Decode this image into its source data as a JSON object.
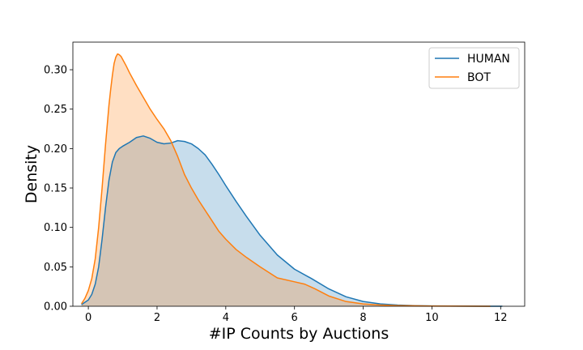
{
  "chart_data": {
    "type": "area",
    "xlabel": "#IP Counts by Auctions",
    "ylabel": "Density",
    "xlim": [
      -0.45,
      12.7
    ],
    "ylim": [
      0,
      0.335
    ],
    "xticks": [
      0,
      2,
      4,
      6,
      8,
      10,
      12
    ],
    "yticks": [
      0.0,
      0.05,
      0.1,
      0.15,
      0.2,
      0.25,
      0.3
    ],
    "ytick_labels": [
      "0.00",
      "0.05",
      "0.10",
      "0.15",
      "0.20",
      "0.25",
      "0.30"
    ],
    "grid": false,
    "legend_position": "top-right",
    "series": [
      {
        "name": "HUMAN",
        "color": "#1f77b4",
        "fill_opacity": 0.25,
        "x": [
          -0.2,
          0.0,
          0.1,
          0.2,
          0.3,
          0.4,
          0.5,
          0.6,
          0.7,
          0.8,
          0.9,
          1.0,
          1.2,
          1.4,
          1.6,
          1.8,
          2.0,
          2.2,
          2.4,
          2.6,
          2.8,
          3.0,
          3.2,
          3.4,
          3.6,
          3.8,
          4.0,
          4.3,
          4.6,
          5.0,
          5.5,
          6.0,
          6.5,
          7.0,
          7.5,
          8.0,
          8.5,
          9.0,
          9.5,
          10.0,
          10.5,
          11.0,
          11.5,
          12.05
        ],
        "y": [
          0.002,
          0.008,
          0.015,
          0.028,
          0.05,
          0.085,
          0.125,
          0.16,
          0.183,
          0.195,
          0.2,
          0.203,
          0.208,
          0.214,
          0.216,
          0.213,
          0.208,
          0.206,
          0.207,
          0.21,
          0.209,
          0.206,
          0.2,
          0.192,
          0.18,
          0.167,
          0.153,
          0.133,
          0.114,
          0.09,
          0.065,
          0.047,
          0.035,
          0.022,
          0.012,
          0.006,
          0.003,
          0.0015,
          0.0008,
          0.0004,
          0.0002,
          0.0001,
          0.0,
          0.0
        ]
      },
      {
        "name": "BOT",
        "color": "#ff7f0e",
        "fill_opacity": 0.25,
        "x": [
          -0.2,
          -0.1,
          0.0,
          0.1,
          0.2,
          0.3,
          0.4,
          0.5,
          0.6,
          0.65,
          0.7,
          0.75,
          0.8,
          0.85,
          0.9,
          0.95,
          1.0,
          1.1,
          1.2,
          1.4,
          1.6,
          1.8,
          2.0,
          2.2,
          2.4,
          2.6,
          2.8,
          3.0,
          3.2,
          3.5,
          3.8,
          4.0,
          4.3,
          4.6,
          5.0,
          5.5,
          6.0,
          6.3,
          6.6,
          7.0,
          7.5,
          8.0,
          8.5,
          9.0,
          10.0,
          11.0,
          11.7
        ],
        "y": [
          0.003,
          0.01,
          0.02,
          0.035,
          0.06,
          0.1,
          0.15,
          0.205,
          0.255,
          0.275,
          0.293,
          0.308,
          0.316,
          0.32,
          0.319,
          0.317,
          0.313,
          0.305,
          0.296,
          0.28,
          0.265,
          0.25,
          0.237,
          0.225,
          0.21,
          0.19,
          0.167,
          0.15,
          0.135,
          0.115,
          0.095,
          0.085,
          0.072,
          0.062,
          0.05,
          0.036,
          0.031,
          0.028,
          0.022,
          0.013,
          0.006,
          0.003,
          0.0015,
          0.0008,
          0.0003,
          0.0001,
          0.0
        ]
      }
    ]
  }
}
